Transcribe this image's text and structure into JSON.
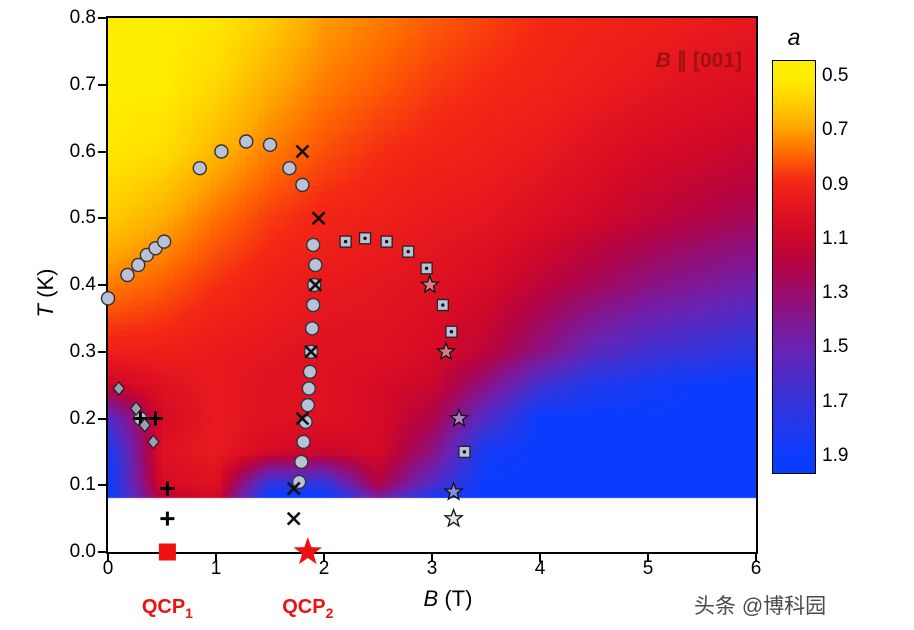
{
  "page": {
    "watermark": "头条 @博科园"
  },
  "chart": {
    "annotation": {
      "italic": "B",
      "rest": " ∥ [001]"
    },
    "xlabel": {
      "italic": "B",
      "rest": " (T)"
    },
    "ylabel": {
      "italic": "T",
      "rest": " (K)"
    },
    "x_ticks": [
      "0",
      "1",
      "2",
      "3",
      "4",
      "5",
      "6"
    ],
    "y_ticks": [
      "0.0",
      "0.1",
      "0.2",
      "0.3",
      "0.4",
      "0.5",
      "0.6",
      "0.7",
      "0.8"
    ],
    "colorbar": {
      "label": "a",
      "ticks": [
        "0.5",
        "0.7",
        "0.9",
        "1.1",
        "1.3",
        "1.5",
        "1.7",
        "1.9"
      ],
      "vmin": 0.44,
      "vmax": 1.96
    },
    "qcp_labels": [
      {
        "base": "QCP",
        "sub": "1"
      },
      {
        "base": "QCP",
        "sub": "2"
      }
    ],
    "colors": {
      "accent_red": "#ee1111",
      "annotation_red": "#a01010",
      "marker_gray": "#b9c0d8",
      "marker_edge": "#333333",
      "watermark_gray": "#4a4a4a"
    }
  },
  "chart_data": {
    "type": "heatmap",
    "title": "",
    "xlabel": "B (T)",
    "ylabel": "T (K)",
    "xlim": [
      0,
      6
    ],
    "ylim": [
      0,
      0.8
    ],
    "annotation": "B ∥ [001]",
    "colorbar_label": "a",
    "colorbar_range": [
      0.5,
      1.9
    ],
    "colorbar_ticks": [
      0.5,
      0.7,
      0.9,
      1.1,
      1.3,
      1.5,
      1.7,
      1.9
    ],
    "colormap_stops": [
      [
        0.5,
        "#ffee00"
      ],
      [
        0.58,
        "#ffd400"
      ],
      [
        0.68,
        "#ffaa00"
      ],
      [
        0.78,
        "#ff6a00"
      ],
      [
        0.88,
        "#f42814"
      ],
      [
        0.98,
        "#e31420"
      ],
      [
        1.08,
        "#d00828"
      ],
      [
        1.2,
        "#b20446"
      ],
      [
        1.35,
        "#8c1282"
      ],
      [
        1.5,
        "#6922b2"
      ],
      [
        1.7,
        "#3434da"
      ],
      [
        1.9,
        "#0a3cff"
      ]
    ],
    "heatmap_grid": {
      "B": [
        0,
        0.5,
        1,
        1.5,
        2,
        2.5,
        3,
        3.5,
        4,
        4.5,
        5,
        5.5,
        6
      ],
      "T": [
        0.085,
        0.1,
        0.15,
        0.2,
        0.25,
        0.3,
        0.4,
        0.5,
        0.6,
        0.7,
        0.8
      ],
      "a": [
        [
          1.9,
          1.15,
          1.05,
          1.9,
          1.9,
          1.4,
          1.8,
          1.9,
          1.9,
          1.9,
          1.9,
          1.9,
          1.9
        ],
        [
          1.9,
          1.05,
          1.0,
          1.75,
          1.75,
          1.2,
          1.6,
          1.9,
          1.9,
          1.9,
          1.9,
          1.9,
          1.9
        ],
        [
          1.85,
          1.0,
          0.95,
          1.05,
          1.1,
          1.05,
          1.35,
          1.85,
          1.9,
          1.9,
          1.9,
          1.9,
          1.9
        ],
        [
          1.6,
          1.05,
          0.95,
          1.0,
          1.0,
          1.05,
          1.2,
          1.6,
          1.9,
          1.9,
          1.9,
          1.9,
          1.9
        ],
        [
          1.1,
          1.0,
          0.95,
          1.0,
          1.0,
          1.05,
          1.1,
          1.35,
          1.65,
          1.8,
          1.85,
          1.9,
          1.9
        ],
        [
          0.92,
          0.92,
          0.95,
          0.97,
          1.0,
          1.0,
          1.05,
          1.15,
          1.35,
          1.55,
          1.65,
          1.7,
          1.75
        ],
        [
          0.75,
          0.8,
          0.87,
          0.92,
          0.95,
          0.97,
          1.0,
          1.05,
          1.15,
          1.25,
          1.35,
          1.42,
          1.48
        ],
        [
          0.6,
          0.67,
          0.77,
          0.85,
          0.9,
          0.92,
          0.95,
          0.97,
          1.02,
          1.08,
          1.14,
          1.2,
          1.25
        ],
        [
          0.52,
          0.55,
          0.65,
          0.75,
          0.82,
          0.87,
          0.9,
          0.92,
          0.95,
          1.0,
          1.05,
          1.08,
          1.12
        ],
        [
          0.5,
          0.5,
          0.57,
          0.67,
          0.75,
          0.8,
          0.85,
          0.88,
          0.9,
          0.93,
          0.96,
          1.0,
          1.02
        ],
        [
          0.5,
          0.5,
          0.52,
          0.6,
          0.7,
          0.75,
          0.8,
          0.84,
          0.88,
          0.9,
          0.92,
          0.94,
          0.96
        ]
      ]
    },
    "series": [
      {
        "name": "phase-boundary-circles",
        "marker": "circle",
        "points": [
          [
            0,
            0.38
          ],
          [
            0.18,
            0.415
          ],
          [
            0.28,
            0.43
          ],
          [
            0.36,
            0.445
          ],
          [
            0.44,
            0.455
          ],
          [
            0.52,
            0.465
          ],
          [
            0.85,
            0.575
          ],
          [
            1.05,
            0.6
          ],
          [
            1.28,
            0.615
          ],
          [
            1.5,
            0.61
          ],
          [
            1.68,
            0.575
          ],
          [
            1.8,
            0.55
          ],
          [
            1.9,
            0.46
          ],
          [
            1.92,
            0.43
          ],
          [
            1.91,
            0.4
          ],
          [
            1.9,
            0.37
          ],
          [
            1.89,
            0.335
          ],
          [
            1.88,
            0.3
          ],
          [
            1.87,
            0.27
          ],
          [
            1.86,
            0.245
          ],
          [
            1.85,
            0.22
          ],
          [
            1.83,
            0.195
          ],
          [
            1.81,
            0.165
          ],
          [
            1.79,
            0.135
          ],
          [
            1.77,
            0.105
          ],
          [
            0.3,
            0.2
          ]
        ]
      },
      {
        "name": "x-markers",
        "marker": "x",
        "points": [
          [
            1.8,
            0.6
          ],
          [
            1.95,
            0.5
          ],
          [
            1.92,
            0.4
          ],
          [
            1.88,
            0.3
          ],
          [
            1.8,
            0.2
          ],
          [
            1.72,
            0.095
          ],
          [
            1.72,
            0.05
          ]
        ]
      },
      {
        "name": "square-markers",
        "marker": "square-dot",
        "points": [
          [
            2.2,
            0.465
          ],
          [
            2.38,
            0.47
          ],
          [
            2.58,
            0.465
          ],
          [
            2.78,
            0.45
          ],
          [
            2.95,
            0.425
          ],
          [
            3.1,
            0.37
          ],
          [
            3.18,
            0.33
          ],
          [
            3.3,
            0.15
          ]
        ]
      },
      {
        "name": "open-star-markers",
        "marker": "open-star",
        "points": [
          [
            2.98,
            0.4
          ],
          [
            3.13,
            0.3
          ],
          [
            3.25,
            0.2
          ],
          [
            3.2,
            0.09
          ],
          [
            3.2,
            0.05
          ]
        ]
      },
      {
        "name": "plus-markers",
        "marker": "plus",
        "points": [
          [
            0.3,
            0.2
          ],
          [
            0.44,
            0.2
          ],
          [
            0.55,
            0.095
          ],
          [
            0.55,
            0.05
          ]
        ]
      },
      {
        "name": "diamond-markers",
        "marker": "diamond",
        "points": [
          [
            0.1,
            0.245
          ],
          [
            0.26,
            0.215
          ],
          [
            0.34,
            0.19
          ],
          [
            0.42,
            0.165
          ]
        ]
      },
      {
        "name": "qcp1-marker",
        "marker": "red-square",
        "label": "QCP1",
        "points": [
          [
            0.55,
            0.0
          ]
        ]
      },
      {
        "name": "qcp2-marker",
        "marker": "red-star",
        "label": "QCP2",
        "points": [
          [
            1.85,
            0.0
          ]
        ]
      }
    ]
  }
}
